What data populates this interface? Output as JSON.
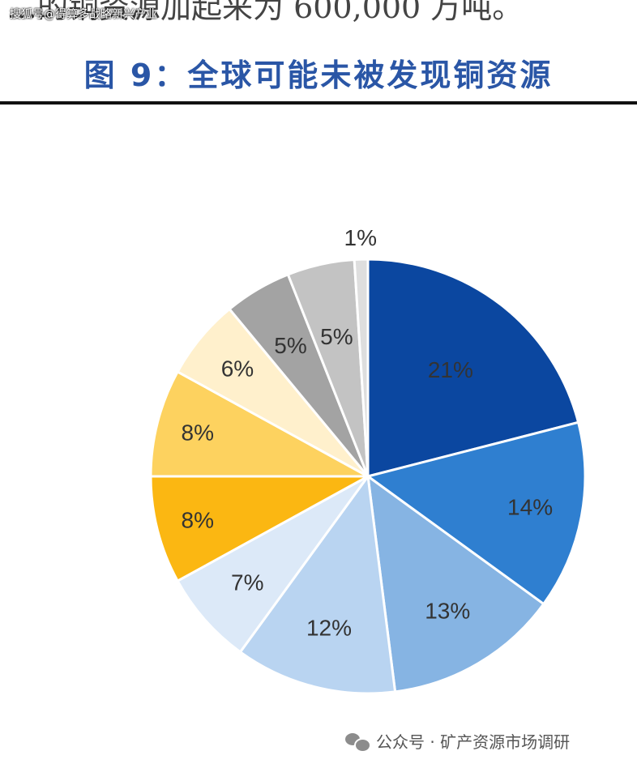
{
  "header": {
    "cut_text": "…的铜资源加起来为 600,000 万吨。",
    "watermark": "搜狐号@得算多战略新兴产业"
  },
  "figure": {
    "title": "图 9：全球可能未被发现铜资源"
  },
  "chart_data": {
    "type": "pie",
    "start_angle_deg": 0,
    "direction": "clockwise",
    "values": [
      21,
      14,
      13,
      12,
      7,
      8,
      8,
      6,
      5,
      5,
      1
    ],
    "labels": [
      "21%",
      "14%",
      "13%",
      "12%",
      "7%",
      "8%",
      "8%",
      "6%",
      "5%",
      "5%",
      "1%"
    ],
    "colors": [
      "#0b47a0",
      "#2f7fd0",
      "#86b4e3",
      "#b9d4f1",
      "#dce9f8",
      "#fbb712",
      "#fdd25f",
      "#fff0cc",
      "#a3a3a3",
      "#c3c3c3",
      "#dedede"
    ],
    "legend": "none"
  },
  "footer": {
    "source": "公众号 · 矿产资源市场调研",
    "icon": "wechat-icon"
  }
}
